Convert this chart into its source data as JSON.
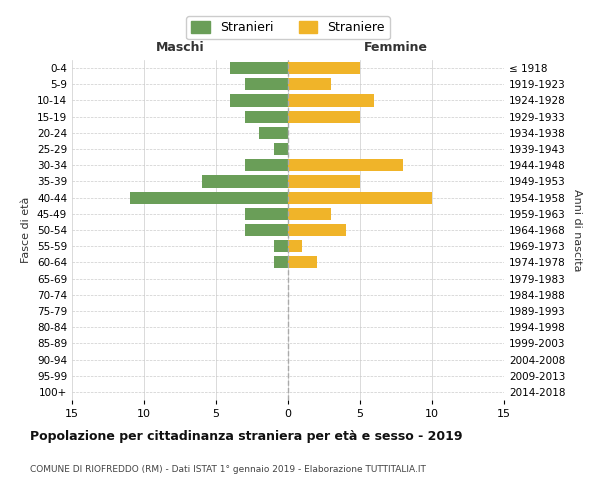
{
  "age_groups": [
    "0-4",
    "5-9",
    "10-14",
    "15-19",
    "20-24",
    "25-29",
    "30-34",
    "35-39",
    "40-44",
    "45-49",
    "50-54",
    "55-59",
    "60-64",
    "65-69",
    "70-74",
    "75-79",
    "80-84",
    "85-89",
    "90-94",
    "95-99",
    "100+"
  ],
  "birth_years": [
    "2014-2018",
    "2009-2013",
    "2004-2008",
    "1999-2003",
    "1994-1998",
    "1989-1993",
    "1984-1988",
    "1979-1983",
    "1974-1978",
    "1969-1973",
    "1964-1968",
    "1959-1963",
    "1954-1958",
    "1949-1953",
    "1944-1948",
    "1939-1943",
    "1934-1938",
    "1929-1933",
    "1924-1928",
    "1919-1923",
    "≤ 1918"
  ],
  "maschi": [
    4,
    3,
    4,
    3,
    2,
    1,
    3,
    6,
    11,
    3,
    3,
    1,
    1,
    0,
    0,
    0,
    0,
    0,
    0,
    0,
    0
  ],
  "femmine": [
    5,
    3,
    6,
    5,
    0,
    0,
    8,
    5,
    10,
    3,
    4,
    1,
    2,
    0,
    0,
    0,
    0,
    0,
    0,
    0,
    0
  ],
  "maschi_color": "#6a9e58",
  "femmine_color": "#f0b429",
  "title": "Popolazione per cittadinanza straniera per età e sesso - 2019",
  "subtitle": "COMUNE DI RIOFREDDO (RM) - Dati ISTAT 1° gennaio 2019 - Elaborazione TUTTITALIA.IT",
  "xlabel_left": "Maschi",
  "xlabel_right": "Femmine",
  "ylabel_left": "Fasce di età",
  "ylabel_right": "Anni di nascita",
  "legend_stranieri": "Stranieri",
  "legend_straniere": "Straniere",
  "xlim": 15,
  "background_color": "#ffffff",
  "grid_color": "#cccccc"
}
